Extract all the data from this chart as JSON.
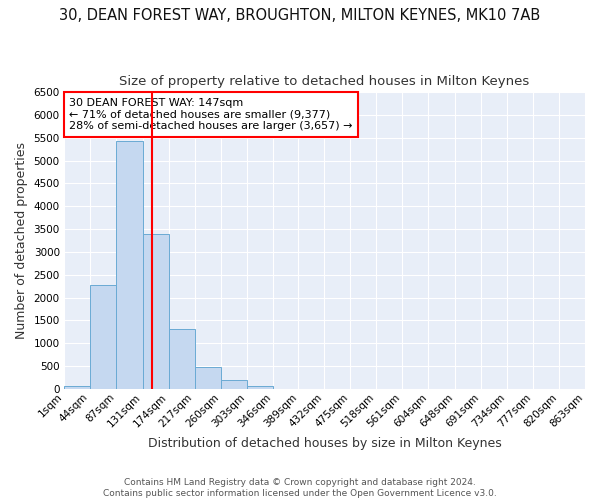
{
  "title": "30, DEAN FOREST WAY, BROUGHTON, MILTON KEYNES, MK10 7AB",
  "subtitle": "Size of property relative to detached houses in Milton Keynes",
  "xlabel": "Distribution of detached houses by size in Milton Keynes",
  "ylabel": "Number of detached properties",
  "footer_line1": "Contains HM Land Registry data © Crown copyright and database right 2024.",
  "footer_line2": "Contains public sector information licensed under the Open Government Licence v3.0.",
  "bin_edges": [
    1,
    44,
    87,
    131,
    174,
    217,
    260,
    303,
    346,
    389,
    432,
    475,
    518,
    561,
    604,
    648,
    691,
    734,
    777,
    820,
    863
  ],
  "bin_labels": [
    "1sqm",
    "44sqm",
    "87sqm",
    "131sqm",
    "174sqm",
    "217sqm",
    "260sqm",
    "303sqm",
    "346sqm",
    "389sqm",
    "432sqm",
    "475sqm",
    "518sqm",
    "561sqm",
    "604sqm",
    "648sqm",
    "691sqm",
    "734sqm",
    "777sqm",
    "820sqm",
    "863sqm"
  ],
  "bar_heights": [
    75,
    2270,
    5430,
    3390,
    1310,
    490,
    190,
    75,
    0,
    0,
    0,
    0,
    0,
    0,
    0,
    0,
    0,
    0,
    0,
    0
  ],
  "bar_color": "#c5d8f0",
  "bar_edge_color": "#6aaad4",
  "vline_x": 147,
  "vline_color": "red",
  "annotation_line1": "30 DEAN FOREST WAY: 147sqm",
  "annotation_line2": "← 71% of detached houses are smaller (9,377)",
  "annotation_line3": "28% of semi-detached houses are larger (3,657) →",
  "ylim": [
    0,
    6500
  ],
  "yticks": [
    0,
    500,
    1000,
    1500,
    2000,
    2500,
    3000,
    3500,
    4000,
    4500,
    5000,
    5500,
    6000,
    6500
  ],
  "plot_bg_color": "#e8eef8",
  "fig_bg_color": "#ffffff",
  "grid_color": "#ffffff",
  "title_fontsize": 10.5,
  "subtitle_fontsize": 9.5,
  "axis_label_fontsize": 9,
  "tick_fontsize": 7.5,
  "annot_fontsize": 8
}
